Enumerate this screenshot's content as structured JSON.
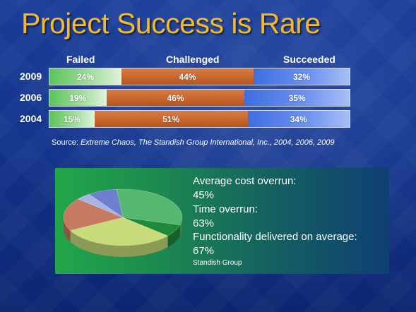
{
  "slide": {
    "title": "Project Success is Rare",
    "source_prefix": "Source: ",
    "source_italic": "Extreme Chaos, The Standish Group International, Inc., 2004, 2006, 2009"
  },
  "chart_data": [
    {
      "type": "bar",
      "stacked": true,
      "orientation": "horizontal",
      "legend": [
        "Failed",
        "Challenged",
        "Succeeded"
      ],
      "categories": [
        "2009",
        "2006",
        "2004"
      ],
      "series": [
        {
          "name": "Failed",
          "values": [
            24,
            19,
            15
          ],
          "labels": [
            "24%",
            "19%",
            "15%"
          ],
          "color": "#6cc96a"
        },
        {
          "name": "Challenged",
          "values": [
            44,
            46,
            51
          ],
          "labels": [
            "44%",
            "46%",
            "51%"
          ],
          "color": "#cd6d33"
        },
        {
          "name": "Succeeded",
          "values": [
            32,
            35,
            34
          ],
          "labels": [
            "32%",
            "35%",
            "34%"
          ],
          "color": "#5a84e8"
        }
      ],
      "xlim": [
        0,
        100
      ]
    },
    {
      "type": "pie",
      "slices": [
        {
          "value": 31,
          "color": "#55b86e"
        },
        {
          "value": 7,
          "color": "#1f8a3a"
        },
        {
          "value": 31,
          "color": "#c7dc78"
        },
        {
          "value": 19,
          "color": "#c77a62"
        },
        {
          "value": 4,
          "color": "#a9b4e6"
        },
        {
          "value": 8,
          "color": "#6f7fd0"
        }
      ]
    }
  ],
  "stats": {
    "cost_label": "Average cost overrun:",
    "cost_value": "45%",
    "time_label": "Time overrun:",
    "time_value": "63%",
    "func_label": "Functionality delivered on average:",
    "func_value": "67%",
    "credit": "Standish Group"
  }
}
